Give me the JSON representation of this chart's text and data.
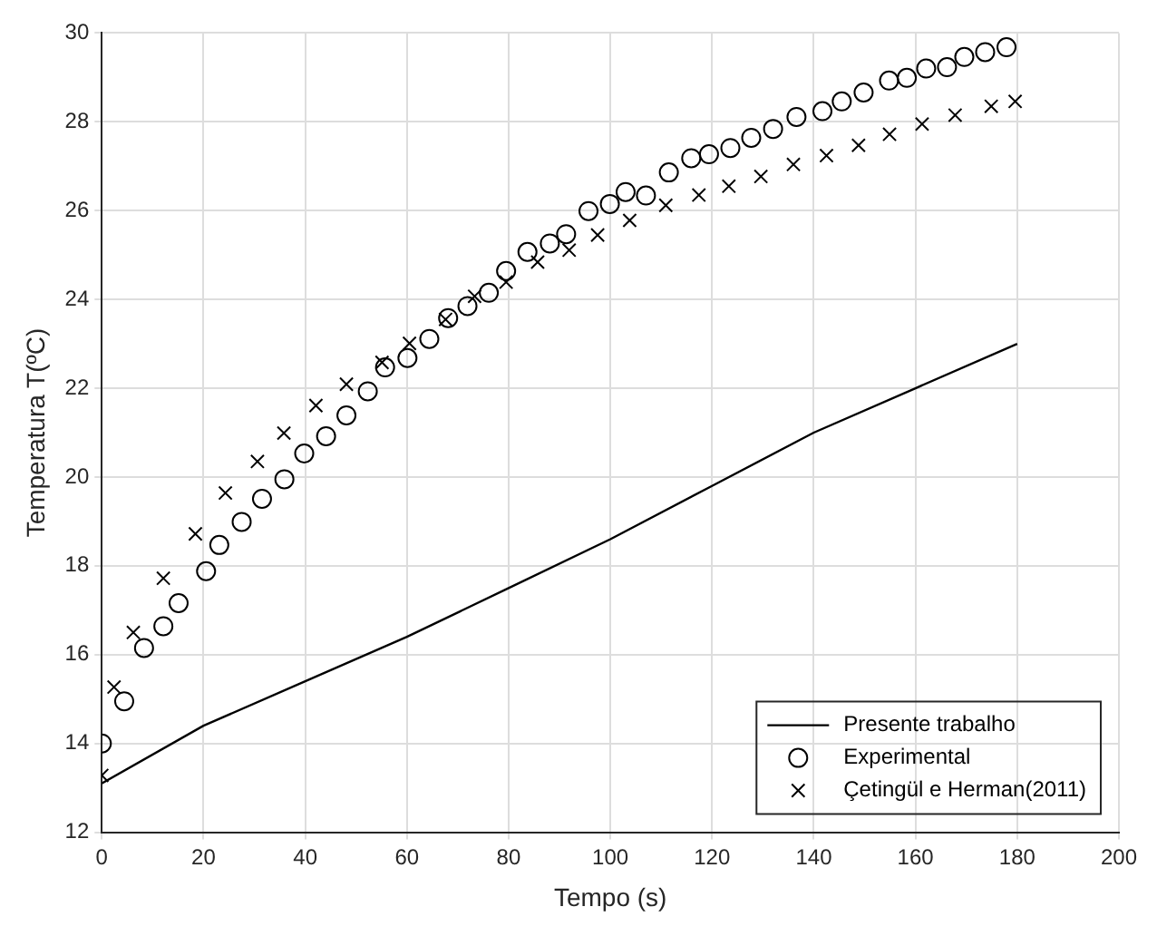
{
  "chart_data": {
    "type": "line",
    "xlabel": "Tempo (s)",
    "ylabel": "Temperatura T(ºC)",
    "xlim": [
      0,
      200
    ],
    "xticks": [
      0,
      20,
      40,
      60,
      80,
      100,
      120,
      140,
      160,
      180,
      200
    ],
    "ylim": [
      12,
      30
    ],
    "yticks": [
      12,
      14,
      16,
      18,
      20,
      22,
      24,
      26,
      28,
      30
    ],
    "grid": true,
    "legend": "bottom right",
    "series": [
      {
        "name": "Presente trabalho",
        "type": "line",
        "marker": "none",
        "line_style": "solid",
        "color": "#000000",
        "x": [
          0,
          20,
          40,
          60,
          80,
          100,
          120,
          140,
          160,
          180
        ],
        "values": [
          13.1,
          14.4,
          15.4,
          16.4,
          17.5,
          18.6,
          19.8,
          21.0,
          22.0,
          23.0
        ]
      },
      {
        "name": "Experimental",
        "type": "scatter",
        "marker": "circle",
        "color": "#000000",
        "x": [
          0,
          4.4,
          8.3,
          12.1,
          15.1,
          20.5,
          23.1,
          27.5,
          31.5,
          35.9,
          39.8,
          44.1,
          48.1,
          52.3,
          55.7,
          60.1,
          64.4,
          68.1,
          71.9,
          76.1,
          79.5,
          83.7,
          88.1,
          91.3,
          95.7,
          99.9,
          103,
          107,
          111.5,
          115.9,
          119.4,
          123.6,
          127.7,
          132,
          136.6,
          141.7,
          145.5,
          149.8,
          154.8,
          158.3,
          162.1,
          166.2,
          169.6,
          173.7,
          177.9
        ],
        "values": [
          14.0,
          14.95,
          16.15,
          16.64,
          17.16,
          17.88,
          18.47,
          18.99,
          19.51,
          19.95,
          20.53,
          20.92,
          21.39,
          21.93,
          22.47,
          22.68,
          23.11,
          23.58,
          23.85,
          24.15,
          24.64,
          25.07,
          25.26,
          25.47,
          25.99,
          26.15,
          26.42,
          26.34,
          26.86,
          27.18,
          27.27,
          27.41,
          27.64,
          27.84,
          28.11,
          28.24,
          28.46,
          28.66,
          28.93,
          28.99,
          29.2,
          29.23,
          29.46,
          29.57,
          29.68
        ]
      },
      {
        "name": "Çetingül e Herman(2011)",
        "type": "scatter",
        "marker": "cross",
        "color": "#000000",
        "x": [
          0,
          2.4,
          6.2,
          12.1,
          18.4,
          24.3,
          30.6,
          35.8,
          42.1,
          48.1,
          55.1,
          60.5,
          67.6,
          73.3,
          79.5,
          85.7,
          91.9,
          97.5,
          103.8,
          110.9,
          117.4,
          123.3,
          129.6,
          136,
          142.5,
          148.8,
          154.9,
          161.3,
          167.8,
          174.9,
          179.6
        ],
        "values": [
          13.28,
          15.27,
          16.5,
          17.72,
          18.72,
          19.64,
          20.35,
          20.99,
          21.61,
          22.09,
          22.58,
          23.01,
          23.55,
          24.07,
          24.39,
          24.84,
          25.11,
          25.45,
          25.78,
          26.12,
          26.35,
          26.55,
          26.77,
          27.04,
          27.24,
          27.47,
          27.72,
          27.95,
          28.15,
          28.35,
          28.46
        ]
      }
    ]
  }
}
